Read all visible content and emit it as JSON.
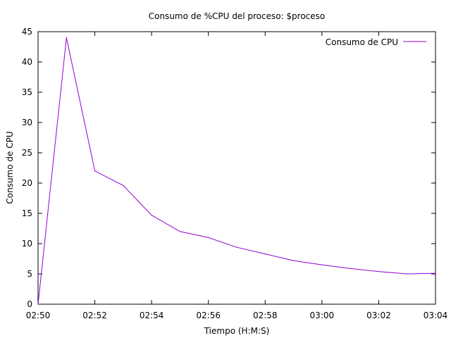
{
  "chart_data": {
    "type": "line",
    "title": "Consumo de %CPU del proceso: $proceso",
    "xlabel": "Tiempo (H:M:S)",
    "ylabel": "Consumo de CPU",
    "xlim": [
      "02:50",
      "03:04"
    ],
    "ylim": [
      0,
      45
    ],
    "xticks": [
      "02:50",
      "02:52",
      "02:54",
      "02:56",
      "02:58",
      "03:00",
      "03:02",
      "03:04"
    ],
    "yticks": [
      0,
      5,
      10,
      15,
      20,
      25,
      30,
      35,
      40,
      45
    ],
    "legend_position": "top-right",
    "grid": false,
    "series": [
      {
        "name": "Consumo de CPU",
        "color": "#9400d3",
        "x": [
          "02:50:00",
          "02:51:00",
          "02:52:00",
          "02:53:00",
          "02:54:00",
          "02:55:00",
          "02:56:00",
          "02:57:00",
          "02:58:00",
          "02:59:00",
          "03:00:00",
          "03:01:00",
          "03:02:00",
          "03:03:00",
          "03:04:00"
        ],
        "y": [
          0,
          44,
          22,
          19.6,
          14.7,
          12,
          11,
          9.4,
          8.3,
          7.2,
          6.5,
          5.9,
          5.4,
          5.0,
          5.1
        ]
      }
    ]
  }
}
